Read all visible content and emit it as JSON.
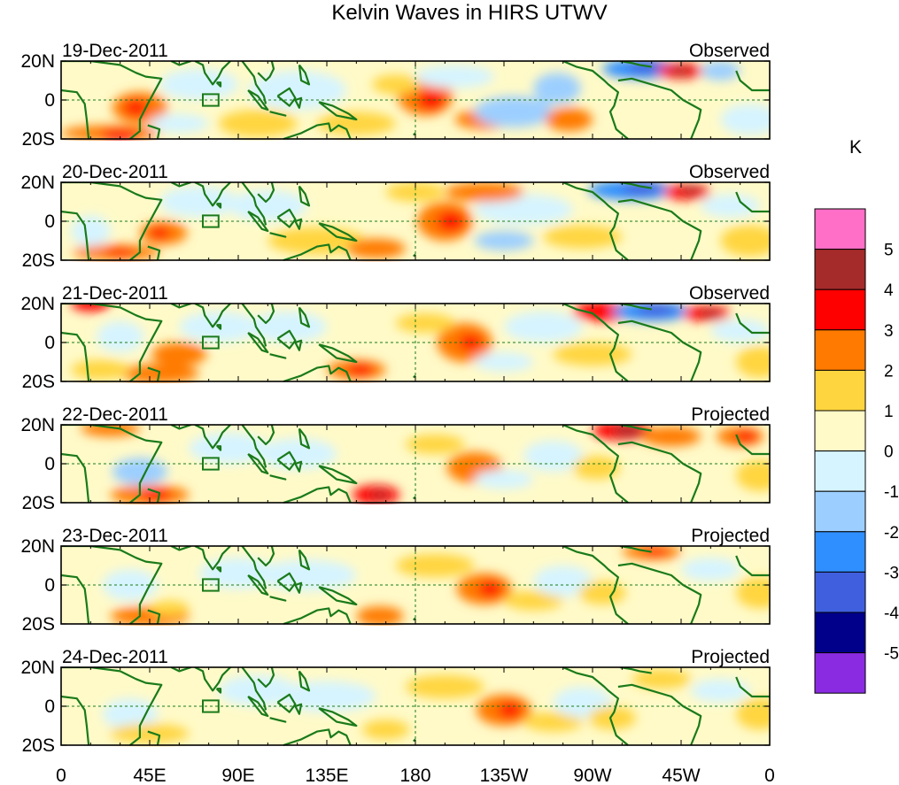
{
  "title": "Kelvin Waves in HIRS UTWV",
  "lat_ticks": [
    "20N",
    "0",
    "20S"
  ],
  "lon_ticks": [
    "0",
    "45E",
    "90E",
    "135E",
    "180",
    "135W",
    "90W",
    "45W",
    "0"
  ],
  "panels": [
    {
      "date": "19-Dec-2011",
      "status": "Observed"
    },
    {
      "date": "20-Dec-2011",
      "status": "Observed"
    },
    {
      "date": "21-Dec-2011",
      "status": "Observed"
    },
    {
      "date": "22-Dec-2011",
      "status": "Projected"
    },
    {
      "date": "23-Dec-2011",
      "status": "Projected"
    },
    {
      "date": "24-Dec-2011",
      "status": "Projected"
    }
  ],
  "colorbar": {
    "unit": "K",
    "labels": [
      "5",
      "4",
      "3",
      "2",
      "1",
      "0",
      "-1",
      "-2",
      "-3",
      "-4",
      "-5"
    ],
    "colors": [
      "#ff6ec7",
      "#a52a2a",
      "#ff0000",
      "#ff7a00",
      "#ffd53f",
      "#fffac8",
      "#d6f4ff",
      "#9ccfff",
      "#2f8fff",
      "#3f5fdf",
      "#00008b",
      "#8a2be2"
    ]
  },
  "map_colors": {
    "coast": "#1a7a1a",
    "box": "#1a7a1a",
    "equator_line": "#1a7a1a"
  }
}
